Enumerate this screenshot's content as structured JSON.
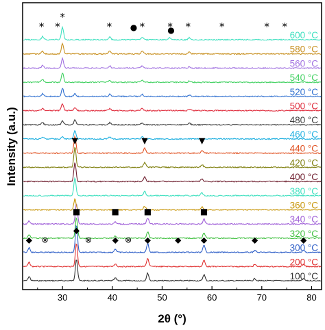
{
  "chart_data": {
    "type": "line",
    "title": "",
    "xlabel": "2θ (°)",
    "ylabel": "Intensity (a.u.)",
    "xlim": [
      22,
      82
    ],
    "xticks": [
      30,
      40,
      50,
      60,
      70,
      80
    ],
    "series": [
      {
        "name": "100 °C",
        "color": "#333333",
        "peaks": [
          {
            "x": 23.3,
            "h": 6
          },
          {
            "x": 32.8,
            "h": 32
          },
          {
            "x": 40.6,
            "h": 4
          },
          {
            "x": 47.1,
            "h": 11
          },
          {
            "x": 58.4,
            "h": 9
          },
          {
            "x": 68.6,
            "h": 3
          },
          {
            "x": 78.4,
            "h": 3
          }
        ]
      },
      {
        "name": "200 °C",
        "color": "#e03030",
        "peaks": [
          {
            "x": 23.3,
            "h": 6
          },
          {
            "x": 32.8,
            "h": 34
          },
          {
            "x": 40.6,
            "h": 4
          },
          {
            "x": 47.1,
            "h": 12
          },
          {
            "x": 58.4,
            "h": 9
          },
          {
            "x": 68.6,
            "h": 3
          },
          {
            "x": 78.4,
            "h": 3
          }
        ]
      },
      {
        "name": "300 °C",
        "color": "#3060c8",
        "peaks": [
          {
            "x": 23.3,
            "h": 7
          },
          {
            "x": 32.8,
            "h": 40
          },
          {
            "x": 40.6,
            "h": 5
          },
          {
            "x": 47.1,
            "h": 13
          },
          {
            "x": 58.4,
            "h": 10
          },
          {
            "x": 68.6,
            "h": 3
          },
          {
            "x": 78.4,
            "h": 3
          }
        ]
      },
      {
        "name": "320 °C",
        "color": "#40c040",
        "peaks": [
          {
            "x": 23.3,
            "h": 5
          },
          {
            "x": 32.8,
            "h": 30
          },
          {
            "x": 40.6,
            "h": 3
          },
          {
            "x": 47.1,
            "h": 9
          },
          {
            "x": 58.4,
            "h": 8
          }
        ]
      },
      {
        "name": "340 °C",
        "color": "#a060d8",
        "peaks": [
          {
            "x": 23.3,
            "h": 4
          },
          {
            "x": 32.8,
            "h": 30
          },
          {
            "x": 40.6,
            "h": 3
          },
          {
            "x": 47.1,
            "h": 9
          },
          {
            "x": 58.4,
            "h": 7
          }
        ]
      },
      {
        "name": "360 °C",
        "color": "#c8960a",
        "peaks": [
          {
            "x": 32.5,
            "h": 16
          },
          {
            "x": 46.5,
            "h": 5
          },
          {
            "x": 58,
            "h": 4
          }
        ]
      },
      {
        "name": "380 °C",
        "color": "#40e0c0",
        "peaks": [
          {
            "x": 32.5,
            "h": 26
          },
          {
            "x": 46.5,
            "h": 6
          },
          {
            "x": 58,
            "h": 4
          }
        ]
      },
      {
        "name": "400 °C",
        "color": "#702030",
        "peaks": [
          {
            "x": 32.5,
            "h": 28
          },
          {
            "x": 46.5,
            "h": 7
          },
          {
            "x": 58,
            "h": 4
          }
        ]
      },
      {
        "name": "420 °C",
        "color": "#808010",
        "peaks": [
          {
            "x": 32.5,
            "h": 30
          },
          {
            "x": 46.5,
            "h": 7
          },
          {
            "x": 58,
            "h": 4
          }
        ]
      },
      {
        "name": "440 °C",
        "color": "#e05020",
        "peaks": [
          {
            "x": 32.5,
            "h": 24
          },
          {
            "x": 46.5,
            "h": 7
          },
          {
            "x": 58,
            "h": 4
          }
        ]
      },
      {
        "name": "460 °C",
        "color": "#20b0e0",
        "peaks": [
          {
            "x": 26,
            "h": 3
          },
          {
            "x": 30,
            "h": 4
          },
          {
            "x": 32.5,
            "h": 12
          },
          {
            "x": 39.5,
            "h": 3
          },
          {
            "x": 46,
            "h": 3
          }
        ]
      },
      {
        "name": "480 °C",
        "color": "#404040",
        "peaks": [
          {
            "x": 26,
            "h": 3
          },
          {
            "x": 30,
            "h": 6
          },
          {
            "x": 32.5,
            "h": 7
          },
          {
            "x": 39.5,
            "h": 3
          },
          {
            "x": 46,
            "h": 3
          },
          {
            "x": 55.5,
            "h": 2
          }
        ]
      },
      {
        "name": "500 °C",
        "color": "#e03040",
        "peaks": [
          {
            "x": 26,
            "h": 3
          },
          {
            "x": 30,
            "h": 10
          },
          {
            "x": 32.5,
            "h": 5
          },
          {
            "x": 39.5,
            "h": 3
          },
          {
            "x": 46,
            "h": 3
          },
          {
            "x": 55.5,
            "h": 2
          }
        ]
      },
      {
        "name": "520 °C",
        "color": "#3070d0",
        "peaks": [
          {
            "x": 26,
            "h": 4
          },
          {
            "x": 30,
            "h": 12
          },
          {
            "x": 32.5,
            "h": 4
          },
          {
            "x": 39.5,
            "h": 3
          },
          {
            "x": 46,
            "h": 3
          },
          {
            "x": 55.5,
            "h": 2
          }
        ]
      },
      {
        "name": "540 °C",
        "color": "#40d060",
        "peaks": [
          {
            "x": 26,
            "h": 4
          },
          {
            "x": 30,
            "h": 14
          },
          {
            "x": 39.5,
            "h": 3
          },
          {
            "x": 46,
            "h": 3
          },
          {
            "x": 55.5,
            "h": 2
          }
        ]
      },
      {
        "name": "560 °C",
        "color": "#a070e0",
        "peaks": [
          {
            "x": 26,
            "h": 4
          },
          {
            "x": 30,
            "h": 14
          },
          {
            "x": 39.5,
            "h": 3
          },
          {
            "x": 46,
            "h": 3
          },
          {
            "x": 55.5,
            "h": 2
          }
        ]
      },
      {
        "name": "580 °C",
        "color": "#c89020",
        "peaks": [
          {
            "x": 26,
            "h": 4
          },
          {
            "x": 30,
            "h": 15
          },
          {
            "x": 39.5,
            "h": 4
          },
          {
            "x": 46,
            "h": 4
          },
          {
            "x": 55.5,
            "h": 3
          }
        ]
      },
      {
        "name": "600 °C",
        "color": "#40e0c0",
        "peaks": [
          {
            "x": 26,
            "h": 5
          },
          {
            "x": 30,
            "h": 18
          },
          {
            "x": 39.5,
            "h": 4
          },
          {
            "x": 46,
            "h": 4
          },
          {
            "x": 51.5,
            "h": 3
          },
          {
            "x": 55.5,
            "h": 3
          }
        ]
      }
    ],
    "annotations": [
      {
        "symbol": "*",
        "x": 25.8,
        "series": "600 °C"
      },
      {
        "symbol": "*",
        "x": 29.0,
        "series": "600 °C"
      },
      {
        "symbol": "*",
        "x": 30.0,
        "series": "600 °C",
        "raise": 1
      },
      {
        "symbol": "*",
        "x": 39.4,
        "series": "600 °C"
      },
      {
        "symbol": "●",
        "x": 44.3,
        "series": "600 °C"
      },
      {
        "symbol": "*",
        "x": 46.0,
        "series": "600 °C"
      },
      {
        "symbol": "*",
        "x": 51.6,
        "series": "600 °C"
      },
      {
        "symbol": "●",
        "x": 51.8,
        "series": "600 °C",
        "raise": -1
      },
      {
        "symbol": "*",
        "x": 55.2,
        "series": "600 °C"
      },
      {
        "symbol": "*",
        "x": 62.0,
        "series": "600 °C"
      },
      {
        "symbol": "*",
        "x": 71.0,
        "series": "600 °C"
      },
      {
        "symbol": "*",
        "x": 74.6,
        "series": "600 °C"
      },
      {
        "symbol": "▼",
        "x": 32.5,
        "series": "440 °C"
      },
      {
        "symbol": "▼",
        "x": 46.5,
        "series": "440 °C"
      },
      {
        "symbol": "▼",
        "x": 58.0,
        "series": "440 °C"
      },
      {
        "symbol": "■",
        "x": 32.8,
        "series": "340 °C"
      },
      {
        "symbol": "■",
        "x": 40.6,
        "series": "340 °C"
      },
      {
        "symbol": "■",
        "x": 47.1,
        "series": "340 °C"
      },
      {
        "symbol": "■",
        "x": 58.4,
        "series": "340 °C"
      },
      {
        "symbol": "◆",
        "x": 23.3,
        "series": "300 °C"
      },
      {
        "symbol": "⊗",
        "x": 26.5,
        "series": "300 °C"
      },
      {
        "symbol": "◆",
        "x": 32.8,
        "series": "300 °C",
        "raise": 1
      },
      {
        "symbol": "⊗",
        "x": 35.2,
        "series": "300 °C"
      },
      {
        "symbol": "◆",
        "x": 40.6,
        "series": "300 °C"
      },
      {
        "symbol": "⊗",
        "x": 43.2,
        "series": "300 °C"
      },
      {
        "symbol": "◆",
        "x": 47.1,
        "series": "300 °C"
      },
      {
        "symbol": "◆",
        "x": 53.2,
        "series": "300 °C"
      },
      {
        "symbol": "◆",
        "x": 58.4,
        "series": "300 °C"
      },
      {
        "symbol": "◆",
        "x": 68.6,
        "series": "300 °C"
      },
      {
        "symbol": "◆",
        "x": 78.4,
        "series": "300 °C"
      }
    ]
  }
}
